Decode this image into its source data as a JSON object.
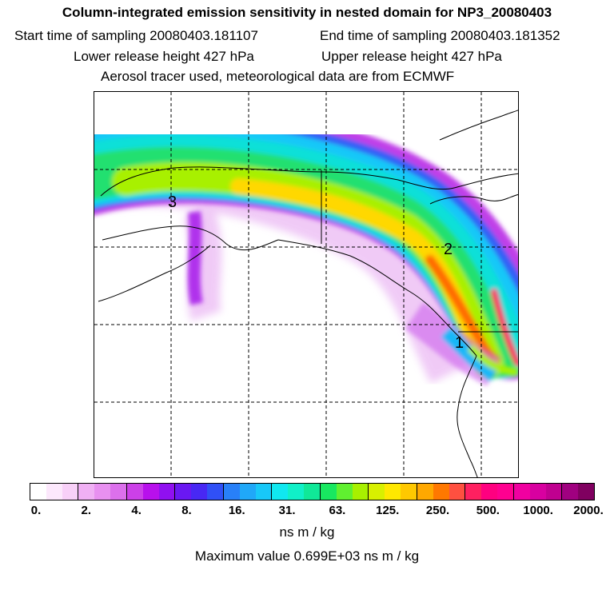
{
  "header": {
    "title": "Column-integrated emission sensitivity in nested domain for NP3_20080403",
    "start_time": "Start time of sampling 20080403.181107",
    "end_time": "End time of sampling 20080403.181352",
    "lower_height": "Lower release height  427 hPa",
    "upper_height": "Upper release height  427 hPa",
    "tracer_info": "Aerosol tracer used, meteorological data are from ECMWF"
  },
  "map": {
    "labels": [
      "3",
      "2",
      "1"
    ]
  },
  "colorbar": {
    "ticks": [
      "0.",
      "2.",
      "4.",
      "8.",
      "16.",
      "31.",
      "63.",
      "125.",
      "250.",
      "500.",
      "1000.",
      "2000."
    ],
    "colors": [
      "#ffffff",
      "#fce8fc",
      "#f8d0f8",
      "#f0b0f4",
      "#e890f0",
      "#dc70ec",
      "#cc40e8",
      "#b810ec",
      "#9010f0",
      "#6a18f2",
      "#4828f4",
      "#3050f6",
      "#2880f8",
      "#20a8f8",
      "#18c8f8",
      "#10e8f0",
      "#10f0c8",
      "#10e898",
      "#18e860",
      "#60f030",
      "#a8f000",
      "#d8f000",
      "#ffe800",
      "#ffc800",
      "#ffa800",
      "#ff7800",
      "#ff5040",
      "#ff2060",
      "#ff0080",
      "#ff0090",
      "#f000a0",
      "#d800a0",
      "#c00090",
      "#a00080",
      "#800060"
    ],
    "units": "ns m / kg"
  },
  "footer": {
    "max_value": "Maximum value  0.699E+03 ns m / kg"
  }
}
